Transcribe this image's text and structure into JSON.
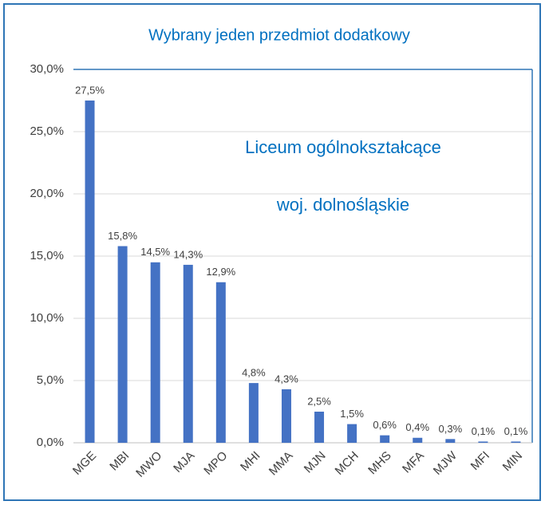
{
  "chart_data": {
    "type": "bar",
    "title": "Wybrany jeden przedmiot dodatkowy",
    "annotations": [
      "Liceum ogólnokształcące",
      "woj. dolnośląskie"
    ],
    "categories": [
      "MGE",
      "MBI",
      "MWO",
      "MJA",
      "MPO",
      "MHI",
      "MMA",
      "MJN",
      "MCH",
      "MHS",
      "MFA",
      "MJW",
      "MFI",
      "MIN"
    ],
    "values": [
      27.5,
      15.8,
      14.5,
      14.3,
      12.9,
      4.8,
      4.3,
      2.5,
      1.5,
      0.6,
      0.4,
      0.3,
      0.1,
      0.1
    ],
    "value_labels": [
      "27,5%",
      "15,8%",
      "14,5%",
      "14,3%",
      "12,9%",
      "4,8%",
      "4,3%",
      "2,5%",
      "1,5%",
      "0,6%",
      "0,4%",
      "0,3%",
      "0,1%",
      "0,1%"
    ],
    "color": "#4472c4",
    "ylim": [
      0,
      30
    ],
    "yticks": [
      {
        "value": 0,
        "label": "0,0%"
      },
      {
        "value": 5,
        "label": "5,0%"
      },
      {
        "value": 10,
        "label": "10,0%"
      },
      {
        "value": 15,
        "label": "15,0%"
      },
      {
        "value": 20,
        "label": "20,0%"
      },
      {
        "value": 25,
        "label": "25,0%"
      },
      {
        "value": 30,
        "label": "30,0%"
      }
    ],
    "grid": true
  }
}
